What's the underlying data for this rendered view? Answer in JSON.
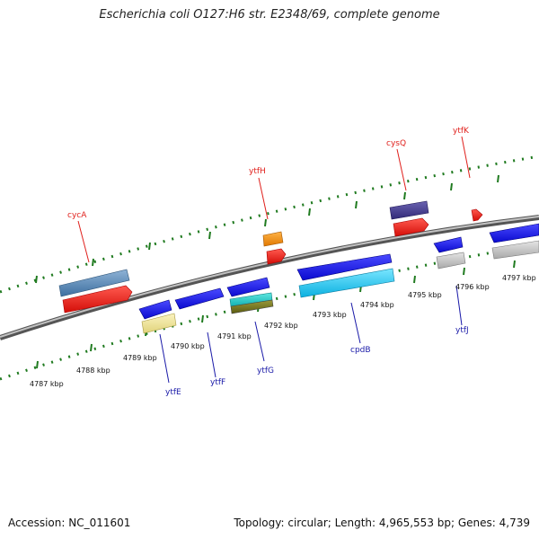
{
  "title": "Escherichia coli O127:H6 str. E2348/69, complete genome",
  "footer": {
    "accession": "Accession: NC_011601",
    "stats": "Topology: circular; Length: 4,965,553 bp; Genes: 4,739"
  },
  "colors": {
    "backbone": "#7a7a7a",
    "tick": "#1f7a1f",
    "label_top": "#e0201c",
    "label_bottom": "#1a1aa8"
  },
  "axis_labels": [
    "4787 kbp",
    "4788 kbp",
    "4789 kbp",
    "4790 kbp",
    "4791 kbp",
    "4792 kbp",
    "4793 kbp",
    "4794 kbp",
    "4795 kbp",
    "4796 kbp",
    "4797 kbp"
  ],
  "gene_labels_top": [
    "cycA",
    "ytfH",
    "cysQ",
    "ytfK"
  ],
  "gene_labels_bottom": [
    "ytfE",
    "ytfF",
    "ytfG",
    "cpdB",
    "ytfJ"
  ]
}
